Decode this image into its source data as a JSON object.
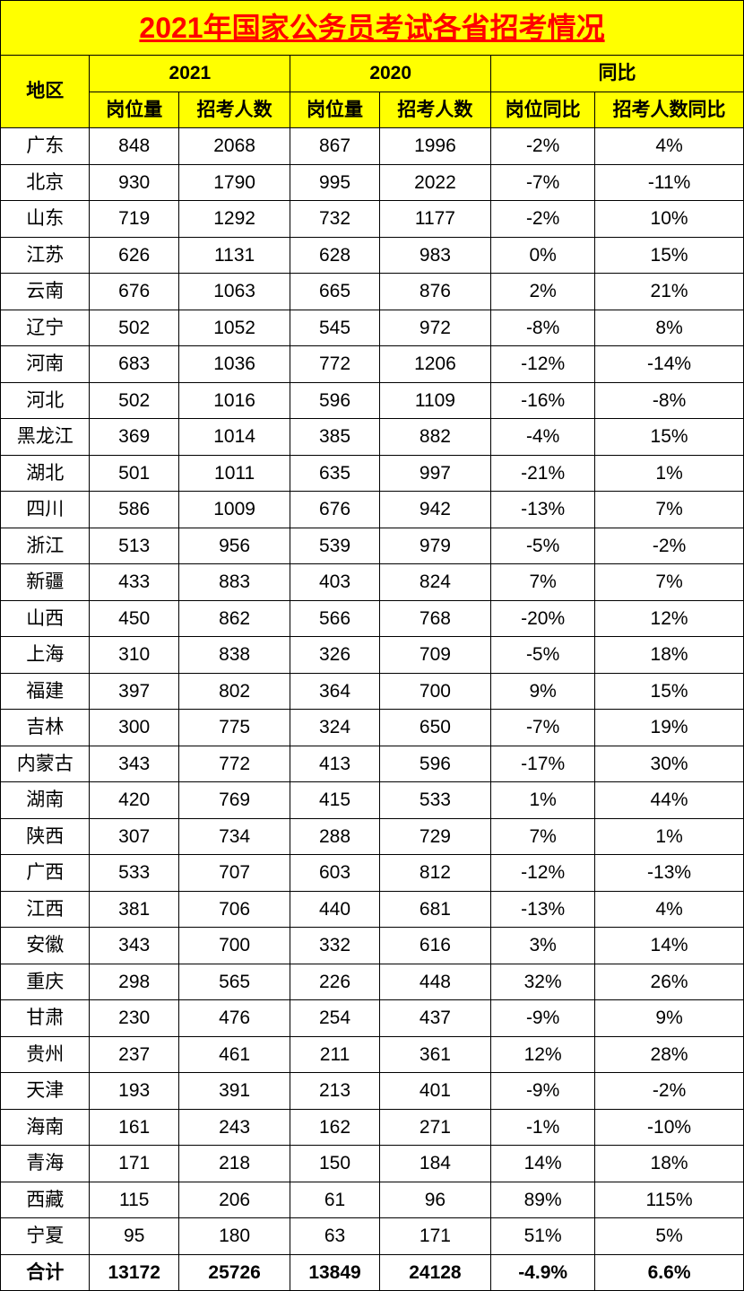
{
  "title": "2021年国家公务员考试各省招考情况",
  "headers": {
    "region": "地区",
    "year2021": "2021",
    "year2020": "2020",
    "yoy": "同比",
    "positions": "岗位量",
    "people": "招考人数",
    "positions_yoy": "岗位同比",
    "people_yoy": "招考人数同比"
  },
  "colors": {
    "header_bg": "#ffff00",
    "title_text": "#ff0000",
    "border": "#000000",
    "body_bg": "#ffffff"
  },
  "rows": [
    {
      "region": "广东",
      "pos21": "848",
      "ppl21": "2068",
      "pos20": "867",
      "ppl20": "1996",
      "posyoy": "-2%",
      "pplyoy": "4%"
    },
    {
      "region": "北京",
      "pos21": "930",
      "ppl21": "1790",
      "pos20": "995",
      "ppl20": "2022",
      "posyoy": "-7%",
      "pplyoy": "-11%"
    },
    {
      "region": "山东",
      "pos21": "719",
      "ppl21": "1292",
      "pos20": "732",
      "ppl20": "1177",
      "posyoy": "-2%",
      "pplyoy": "10%"
    },
    {
      "region": "江苏",
      "pos21": "626",
      "ppl21": "1131",
      "pos20": "628",
      "ppl20": "983",
      "posyoy": "0%",
      "pplyoy": "15%"
    },
    {
      "region": "云南",
      "pos21": "676",
      "ppl21": "1063",
      "pos20": "665",
      "ppl20": "876",
      "posyoy": "2%",
      "pplyoy": "21%"
    },
    {
      "region": "辽宁",
      "pos21": "502",
      "ppl21": "1052",
      "pos20": "545",
      "ppl20": "972",
      "posyoy": "-8%",
      "pplyoy": "8%"
    },
    {
      "region": "河南",
      "pos21": "683",
      "ppl21": "1036",
      "pos20": "772",
      "ppl20": "1206",
      "posyoy": "-12%",
      "pplyoy": "-14%"
    },
    {
      "region": "河北",
      "pos21": "502",
      "ppl21": "1016",
      "pos20": "596",
      "ppl20": "1109",
      "posyoy": "-16%",
      "pplyoy": "-8%"
    },
    {
      "region": "黑龙江",
      "pos21": "369",
      "ppl21": "1014",
      "pos20": "385",
      "ppl20": "882",
      "posyoy": "-4%",
      "pplyoy": "15%"
    },
    {
      "region": "湖北",
      "pos21": "501",
      "ppl21": "1011",
      "pos20": "635",
      "ppl20": "997",
      "posyoy": "-21%",
      "pplyoy": "1%"
    },
    {
      "region": "四川",
      "pos21": "586",
      "ppl21": "1009",
      "pos20": "676",
      "ppl20": "942",
      "posyoy": "-13%",
      "pplyoy": "7%"
    },
    {
      "region": "浙江",
      "pos21": "513",
      "ppl21": "956",
      "pos20": "539",
      "ppl20": "979",
      "posyoy": "-5%",
      "pplyoy": "-2%"
    },
    {
      "region": "新疆",
      "pos21": "433",
      "ppl21": "883",
      "pos20": "403",
      "ppl20": "824",
      "posyoy": "7%",
      "pplyoy": "7%"
    },
    {
      "region": "山西",
      "pos21": "450",
      "ppl21": "862",
      "pos20": "566",
      "ppl20": "768",
      "posyoy": "-20%",
      "pplyoy": "12%"
    },
    {
      "region": "上海",
      "pos21": "310",
      "ppl21": "838",
      "pos20": "326",
      "ppl20": "709",
      "posyoy": "-5%",
      "pplyoy": "18%"
    },
    {
      "region": "福建",
      "pos21": "397",
      "ppl21": "802",
      "pos20": "364",
      "ppl20": "700",
      "posyoy": "9%",
      "pplyoy": "15%"
    },
    {
      "region": "吉林",
      "pos21": "300",
      "ppl21": "775",
      "pos20": "324",
      "ppl20": "650",
      "posyoy": "-7%",
      "pplyoy": "19%"
    },
    {
      "region": "内蒙古",
      "pos21": "343",
      "ppl21": "772",
      "pos20": "413",
      "ppl20": "596",
      "posyoy": "-17%",
      "pplyoy": "30%"
    },
    {
      "region": "湖南",
      "pos21": "420",
      "ppl21": "769",
      "pos20": "415",
      "ppl20": "533",
      "posyoy": "1%",
      "pplyoy": "44%"
    },
    {
      "region": "陕西",
      "pos21": "307",
      "ppl21": "734",
      "pos20": "288",
      "ppl20": "729",
      "posyoy": "7%",
      "pplyoy": "1%"
    },
    {
      "region": "广西",
      "pos21": "533",
      "ppl21": "707",
      "pos20": "603",
      "ppl20": "812",
      "posyoy": "-12%",
      "pplyoy": "-13%"
    },
    {
      "region": "江西",
      "pos21": "381",
      "ppl21": "706",
      "pos20": "440",
      "ppl20": "681",
      "posyoy": "-13%",
      "pplyoy": "4%"
    },
    {
      "region": "安徽",
      "pos21": "343",
      "ppl21": "700",
      "pos20": "332",
      "ppl20": "616",
      "posyoy": "3%",
      "pplyoy": "14%"
    },
    {
      "region": "重庆",
      "pos21": "298",
      "ppl21": "565",
      "pos20": "226",
      "ppl20": "448",
      "posyoy": "32%",
      "pplyoy": "26%"
    },
    {
      "region": "甘肃",
      "pos21": "230",
      "ppl21": "476",
      "pos20": "254",
      "ppl20": "437",
      "posyoy": "-9%",
      "pplyoy": "9%"
    },
    {
      "region": "贵州",
      "pos21": "237",
      "ppl21": "461",
      "pos20": "211",
      "ppl20": "361",
      "posyoy": "12%",
      "pplyoy": "28%"
    },
    {
      "region": "天津",
      "pos21": "193",
      "ppl21": "391",
      "pos20": "213",
      "ppl20": "401",
      "posyoy": "-9%",
      "pplyoy": "-2%"
    },
    {
      "region": "海南",
      "pos21": "161",
      "ppl21": "243",
      "pos20": "162",
      "ppl20": "271",
      "posyoy": "-1%",
      "pplyoy": "-10%"
    },
    {
      "region": "青海",
      "pos21": "171",
      "ppl21": "218",
      "pos20": "150",
      "ppl20": "184",
      "posyoy": "14%",
      "pplyoy": "18%"
    },
    {
      "region": "西藏",
      "pos21": "115",
      "ppl21": "206",
      "pos20": "61",
      "ppl20": "96",
      "posyoy": "89%",
      "pplyoy": "115%"
    },
    {
      "region": "宁夏",
      "pos21": "95",
      "ppl21": "180",
      "pos20": "63",
      "ppl20": "171",
      "posyoy": "51%",
      "pplyoy": "5%"
    }
  ],
  "total": {
    "region": "合计",
    "pos21": "13172",
    "ppl21": "25726",
    "pos20": "13849",
    "ppl20": "24128",
    "posyoy": "-4.9%",
    "pplyoy": "6.6%"
  }
}
